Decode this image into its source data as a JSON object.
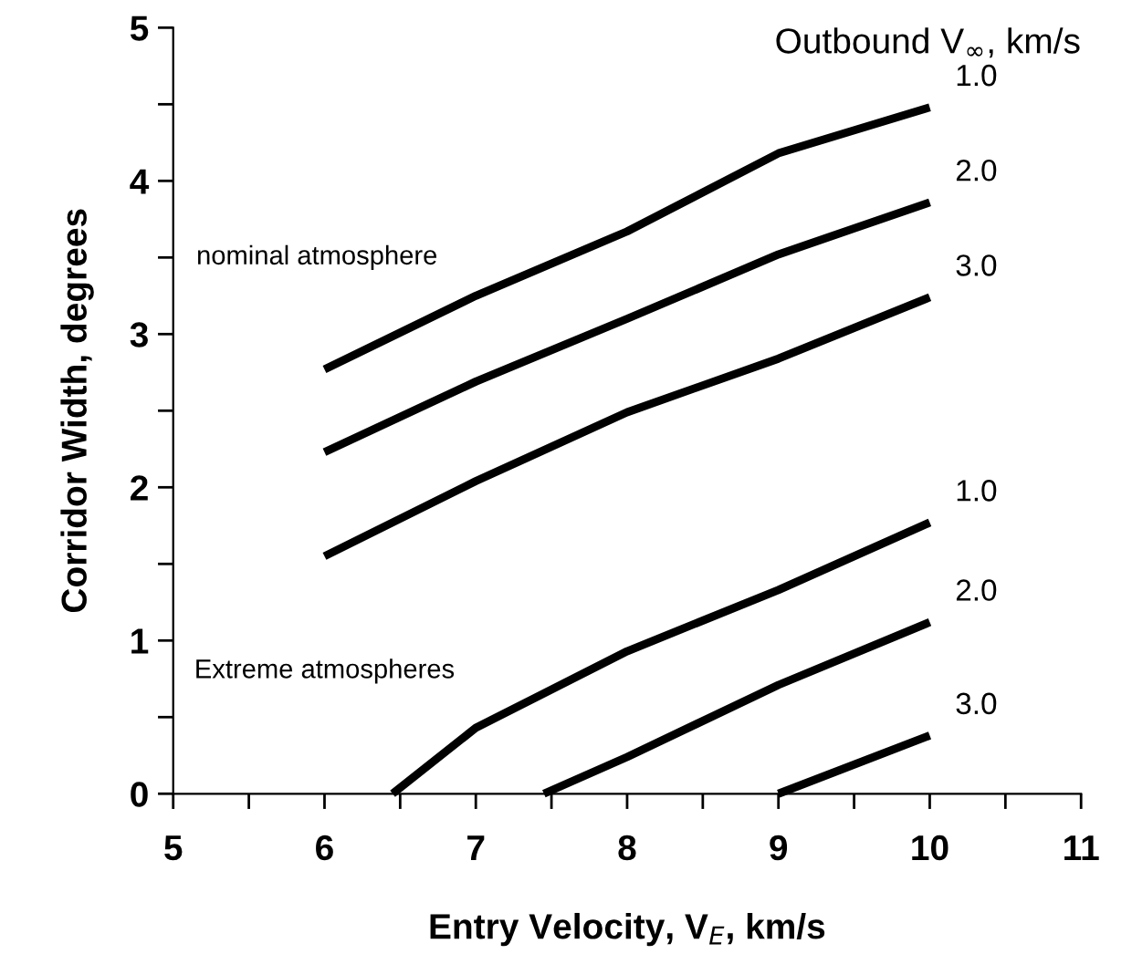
{
  "chart_data": {
    "type": "line",
    "xlabel": "Entry Velocity, V$_{E}$, km/s",
    "ylabel": "Corridor Width, degrees",
    "legend_title": "Outbound V$_{∞}$, km/s",
    "xlim": [
      5,
      11
    ],
    "ylim": [
      0,
      5
    ],
    "xticks": [
      5,
      {
        "value": 5.5,
        "label": null
      },
      6,
      {
        "value": 6.5,
        "label": null
      },
      7,
      {
        "value": 7.5,
        "label": null
      },
      8,
      {
        "value": 8.5,
        "label": null
      },
      9,
      {
        "value": 9.5,
        "label": null
      },
      10,
      {
        "value": 10.5,
        "label": null
      },
      11
    ],
    "yticks": [
      0,
      {
        "value": 0.5,
        "label": null
      },
      1,
      {
        "value": 1.5,
        "label": null
      },
      2,
      {
        "value": 2.5,
        "label": null
      },
      3,
      {
        "value": 3.5,
        "label": null
      },
      4,
      {
        "value": 4.5,
        "label": null
      },
      5
    ],
    "grid": false,
    "legend": false,
    "marker": "none",
    "line_style": "solid",
    "series": [
      {
        "name": "1.0",
        "color": "#000000",
        "x": [
          6,
          7,
          8,
          9,
          10
        ],
        "values": [
          2.77,
          3.25,
          3.67,
          4.18,
          4.48
        ]
      },
      {
        "name": "2.0",
        "color": "#000000",
        "x": [
          6,
          7,
          8,
          9,
          10
        ],
        "values": [
          2.23,
          2.69,
          3.1,
          3.52,
          3.86
        ]
      },
      {
        "name": "3.0",
        "color": "#000000",
        "x": [
          6,
          7,
          8,
          9,
          10
        ],
        "values": [
          1.55,
          2.04,
          2.49,
          2.84,
          3.24
        ]
      },
      {
        "name": "1.0",
        "color": "#000000",
        "x": [
          6.45,
          7,
          8,
          9,
          10
        ],
        "values": [
          0,
          0.43,
          0.93,
          1.33,
          1.77
        ]
      },
      {
        "name": "2.0",
        "color": "#000000",
        "x": [
          7.45,
          8,
          9,
          10
        ],
        "values": [
          0,
          0.24,
          0.71,
          1.12
        ]
      },
      {
        "name": "3.0",
        "color": "#000000",
        "x": [
          9,
          10
        ],
        "values": [
          0,
          0.38
        ]
      }
    ],
    "annotations": [
      "nominal atmosphere",
      "Extreme atmospheres"
    ]
  }
}
